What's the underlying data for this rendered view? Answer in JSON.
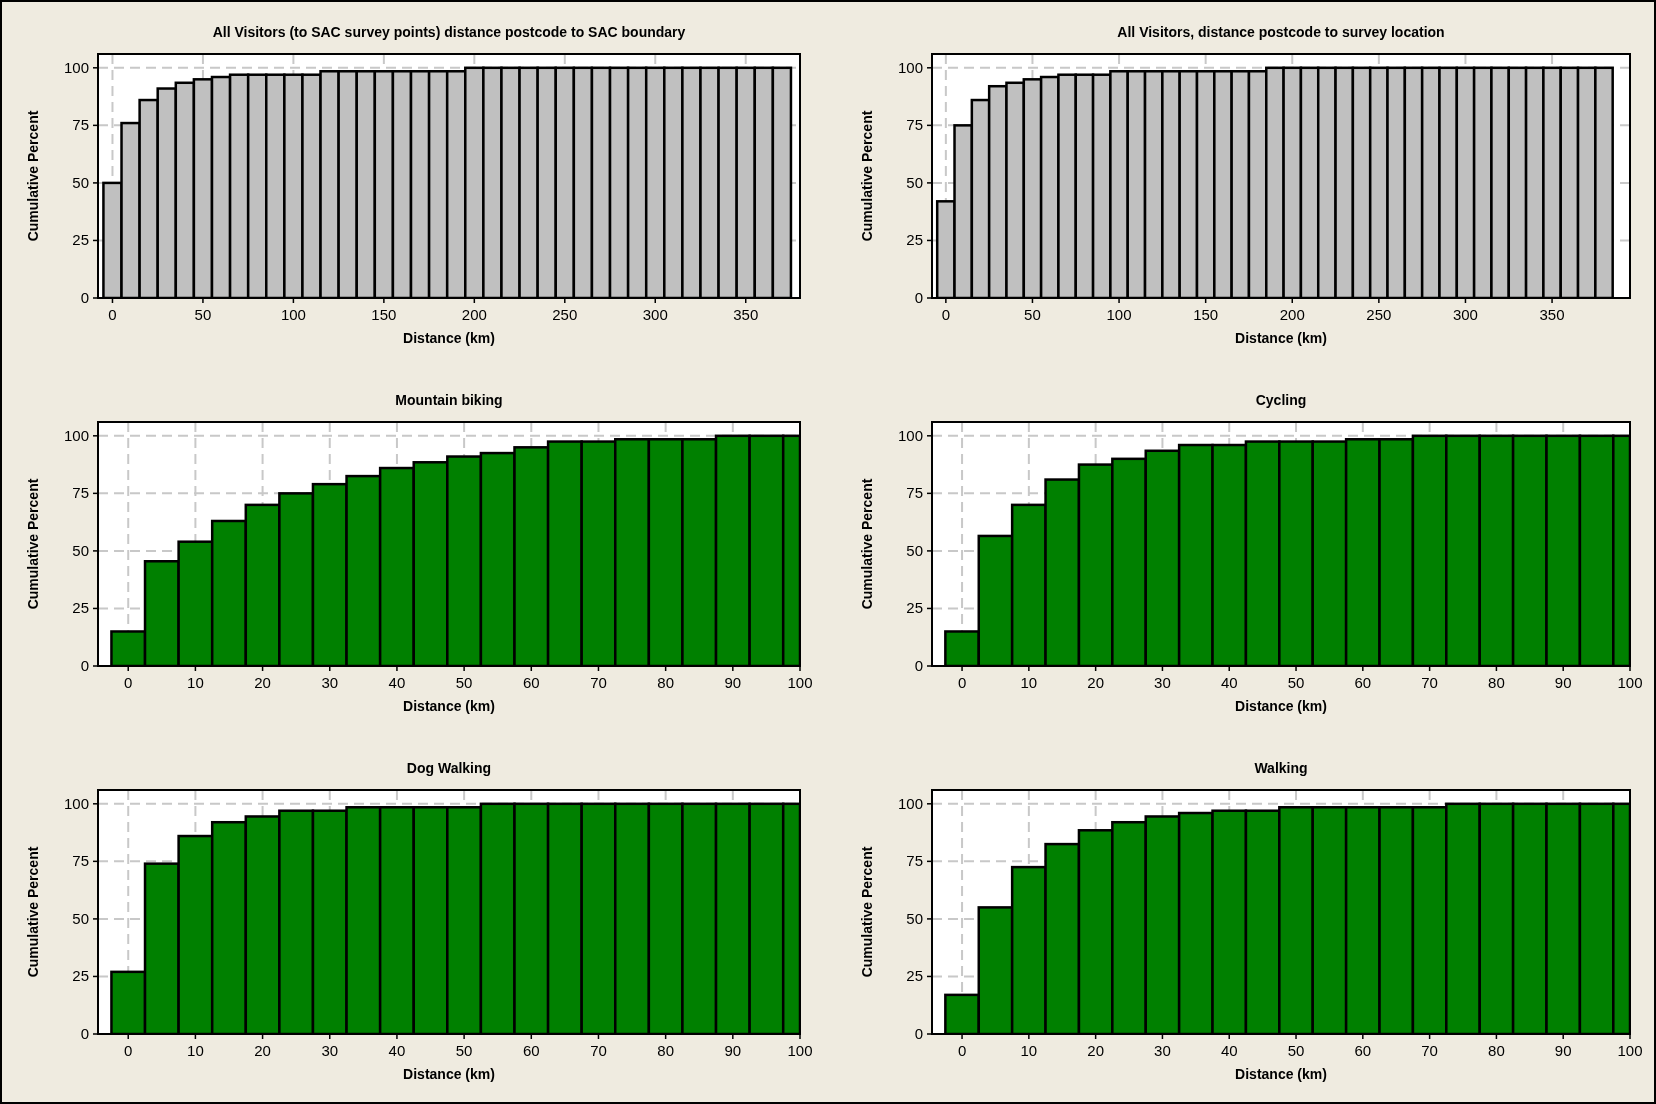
{
  "chart_data": [
    {
      "type": "histogram",
      "title": "All Visitors (to SAC survey points) distance postcode to SAC boundary",
      "xlabel": "Distance (km)",
      "ylabel": "Cumulative Percent",
      "color": "#c0c0c0",
      "bins": [
        -5,
        5,
        15,
        25,
        35,
        45,
        55,
        65,
        75,
        85,
        95,
        105,
        115,
        125,
        135,
        145,
        155,
        165,
        175,
        185,
        195,
        205,
        215,
        225,
        235,
        245,
        255,
        265,
        275,
        285,
        295,
        305,
        315,
        325,
        335,
        345,
        355,
        365,
        375
      ],
      "values": [
        50,
        76,
        86,
        91,
        93.5,
        95,
        96,
        97,
        97,
        97,
        97,
        97,
        98.5,
        98.5,
        98.5,
        98.5,
        98.5,
        98.5,
        98.5,
        98.5,
        100,
        100,
        100,
        100,
        100,
        100,
        100,
        100,
        100,
        100,
        100,
        100,
        100,
        100,
        100,
        100,
        100,
        100
      ],
      "xlim": [
        -8,
        380
      ],
      "xticks": [
        0,
        50,
        100,
        150,
        200,
        250,
        300,
        350
      ],
      "ylim": [
        0,
        106
      ],
      "yticks": [
        0,
        25,
        50,
        75,
        100
      ],
      "grid": true
    },
    {
      "type": "histogram",
      "title": "All Visitors, distance postcode to survey location",
      "xlabel": "Distance (km)",
      "ylabel": "Cumulative Percent",
      "color": "#c0c0c0",
      "bins": [
        -5,
        5,
        15,
        25,
        35,
        45,
        55,
        65,
        75,
        85,
        95,
        105,
        115,
        125,
        135,
        145,
        155,
        165,
        175,
        185,
        195,
        205,
        215,
        225,
        235,
        245,
        255,
        265,
        275,
        285,
        295,
        305,
        315,
        325,
        335,
        345,
        355,
        365,
        375,
        385
      ],
      "values": [
        42,
        75,
        86,
        92,
        93.5,
        95,
        96,
        97,
        97,
        97,
        98.5,
        98.5,
        98.5,
        98.5,
        98.5,
        98.5,
        98.5,
        98.5,
        98.5,
        100,
        100,
        100,
        100,
        100,
        100,
        100,
        100,
        100,
        100,
        100,
        100,
        100,
        100,
        100,
        100,
        100,
        100,
        100,
        100
      ],
      "xlim": [
        -8,
        395
      ],
      "xticks": [
        0,
        50,
        100,
        150,
        200,
        250,
        300,
        350
      ],
      "ylim": [
        0,
        106
      ],
      "yticks": [
        0,
        25,
        50,
        75,
        100
      ],
      "grid": true
    },
    {
      "type": "histogram",
      "title": "Mountain biking",
      "xlabel": "Distance (km)",
      "ylabel": "Cumulative Percent",
      "color": "#008000",
      "bins": [
        -2.5,
        2.5,
        7.5,
        12.5,
        17.5,
        22.5,
        27.5,
        32.5,
        37.5,
        42.5,
        47.5,
        52.5,
        57.5,
        62.5,
        67.5,
        72.5,
        77.5,
        82.5,
        87.5,
        92.5,
        97.5,
        100
      ],
      "values": [
        15,
        45.5,
        54,
        63,
        70,
        75,
        79,
        82.5,
        86,
        88.5,
        91,
        92.5,
        95,
        97.5,
        97.5,
        98.5,
        98.5,
        98.5,
        100,
        100,
        100
      ],
      "xlim": [
        -4.5,
        100
      ],
      "xticks": [
        0,
        10,
        20,
        30,
        40,
        50,
        60,
        70,
        80,
        90,
        100
      ],
      "ylim": [
        0,
        106
      ],
      "yticks": [
        0,
        25,
        50,
        75,
        100
      ],
      "grid": true
    },
    {
      "type": "histogram",
      "title": "Cycling",
      "xlabel": "Distance (km)",
      "ylabel": "Cumulative Percent",
      "color": "#008000",
      "bins": [
        -2.5,
        2.5,
        7.5,
        12.5,
        17.5,
        22.5,
        27.5,
        32.5,
        37.5,
        42.5,
        47.5,
        52.5,
        57.5,
        62.5,
        67.5,
        72.5,
        77.5,
        82.5,
        87.5,
        92.5,
        97.5,
        100
      ],
      "values": [
        15,
        56.5,
        70,
        81,
        87.5,
        90,
        93.5,
        96,
        96,
        97.5,
        97.5,
        97.5,
        98.5,
        98.5,
        100,
        100,
        100,
        100,
        100,
        100,
        100
      ],
      "xlim": [
        -4.5,
        100
      ],
      "xticks": [
        0,
        10,
        20,
        30,
        40,
        50,
        60,
        70,
        80,
        90,
        100
      ],
      "ylim": [
        0,
        106
      ],
      "yticks": [
        0,
        25,
        50,
        75,
        100
      ],
      "grid": true
    },
    {
      "type": "histogram",
      "title": "Dog Walking",
      "xlabel": "Distance (km)",
      "ylabel": "Cumulative Percent",
      "color": "#008000",
      "bins": [
        -2.5,
        2.5,
        7.5,
        12.5,
        17.5,
        22.5,
        27.5,
        32.5,
        37.5,
        42.5,
        47.5,
        52.5,
        57.5,
        62.5,
        67.5,
        72.5,
        77.5,
        82.5,
        87.5,
        92.5,
        97.5,
        100
      ],
      "values": [
        27,
        74,
        86,
        92,
        94.5,
        97,
        97,
        98.5,
        98.5,
        98.5,
        98.5,
        100,
        100,
        100,
        100,
        100,
        100,
        100,
        100,
        100,
        100
      ],
      "xlim": [
        -4.5,
        100
      ],
      "xticks": [
        0,
        10,
        20,
        30,
        40,
        50,
        60,
        70,
        80,
        90,
        100
      ],
      "ylim": [
        0,
        106
      ],
      "yticks": [
        0,
        25,
        50,
        75,
        100
      ],
      "grid": true
    },
    {
      "type": "histogram",
      "title": "Walking",
      "xlabel": "Distance (km)",
      "ylabel": "Cumulative Percent",
      "color": "#008000",
      "bins": [
        -2.5,
        2.5,
        7.5,
        12.5,
        17.5,
        22.5,
        27.5,
        32.5,
        37.5,
        42.5,
        47.5,
        52.5,
        57.5,
        62.5,
        67.5,
        72.5,
        77.5,
        82.5,
        87.5,
        92.5,
        97.5,
        100
      ],
      "values": [
        17,
        55,
        72.5,
        82.5,
        88.5,
        92,
        94.5,
        96,
        97,
        97,
        98.5,
        98.5,
        98.5,
        98.5,
        98.5,
        100,
        100,
        100,
        100,
        100,
        100
      ],
      "xlim": [
        -4.5,
        100
      ],
      "xticks": [
        0,
        10,
        20,
        30,
        40,
        50,
        60,
        70,
        80,
        90,
        100
      ],
      "ylim": [
        0,
        106
      ],
      "yticks": [
        0,
        25,
        50,
        75,
        100
      ],
      "grid": true
    }
  ]
}
